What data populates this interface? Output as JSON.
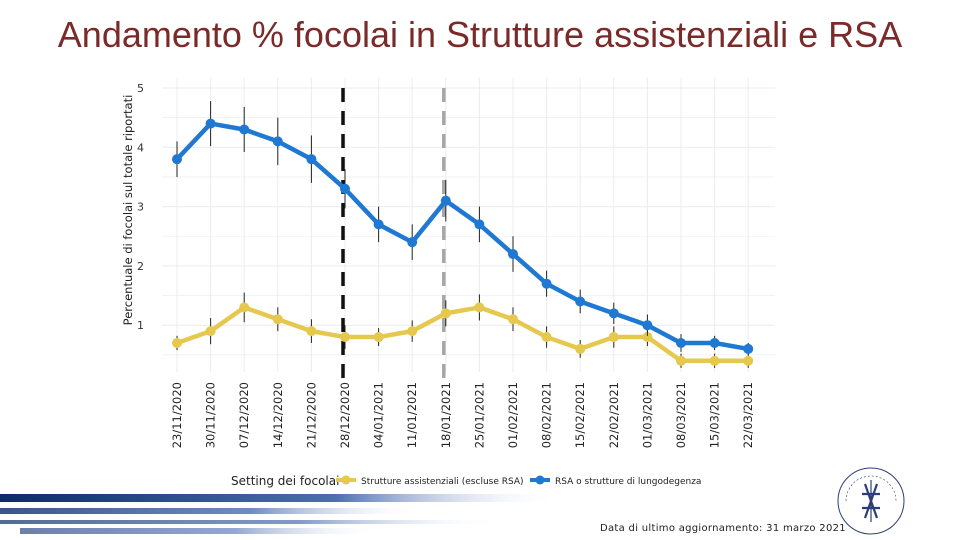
{
  "page": {
    "title": "Andamento % focolai in Strutture assistenziali e RSA",
    "footer": "Data di ultimo aggiornamento: 31 marzo 2021",
    "logo_text": "ISTITUTO SUPERIORE DI SANITÀ"
  },
  "chart_data": {
    "type": "line",
    "title": "",
    "xlabel": "",
    "ylabel": "Percentuale di focolai sul totale riportati",
    "ylim": [
      0,
      5
    ],
    "yticks": [
      1,
      2,
      3,
      4,
      5
    ],
    "grid": true,
    "categories": [
      "23/11/2020",
      "30/11/2020",
      "07/12/2020",
      "14/12/2020",
      "21/12/2020",
      "28/12/2020",
      "04/01/2021",
      "11/01/2021",
      "18/01/2021",
      "25/01/2021",
      "01/02/2021",
      "08/02/2021",
      "15/02/2021",
      "22/02/2021",
      "01/03/2021",
      "08/03/2021",
      "15/03/2021",
      "22/03/2021"
    ],
    "legend": {
      "title": "Setting dei focolai",
      "position": "bottom"
    },
    "vlines": [
      {
        "category": "28/12/2020",
        "style": "dashed",
        "color": "#111111"
      },
      {
        "category": "18/01/2021",
        "style": "dashed",
        "color": "#a6a6a6"
      }
    ],
    "series": [
      {
        "name": "Strutture assistenziali (escluse RSA)",
        "color": "#e6c84f",
        "values": [
          0.7,
          0.9,
          1.3,
          1.1,
          0.9,
          0.8,
          0.8,
          0.9,
          1.2,
          1.3,
          1.1,
          0.8,
          0.6,
          0.8,
          0.8,
          0.4,
          0.4,
          0.4
        ],
        "err": [
          0.12,
          0.22,
          0.25,
          0.2,
          0.2,
          0.2,
          0.15,
          0.18,
          0.22,
          0.22,
          0.2,
          0.18,
          0.15,
          0.18,
          0.15,
          0.12,
          0.12,
          0.12
        ]
      },
      {
        "name": "RSA o strutture di lungodegenza",
        "color": "#1f78d1",
        "values": [
          3.8,
          4.4,
          4.3,
          4.1,
          3.8,
          3.3,
          2.7,
          2.4,
          3.1,
          2.7,
          2.2,
          1.7,
          1.4,
          1.2,
          1.0,
          0.7,
          0.7,
          0.6
        ],
        "err": [
          0.3,
          0.38,
          0.38,
          0.4,
          0.4,
          0.33,
          0.3,
          0.3,
          0.35,
          0.3,
          0.3,
          0.22,
          0.2,
          0.18,
          0.18,
          0.15,
          0.12,
          0.1
        ]
      }
    ]
  }
}
